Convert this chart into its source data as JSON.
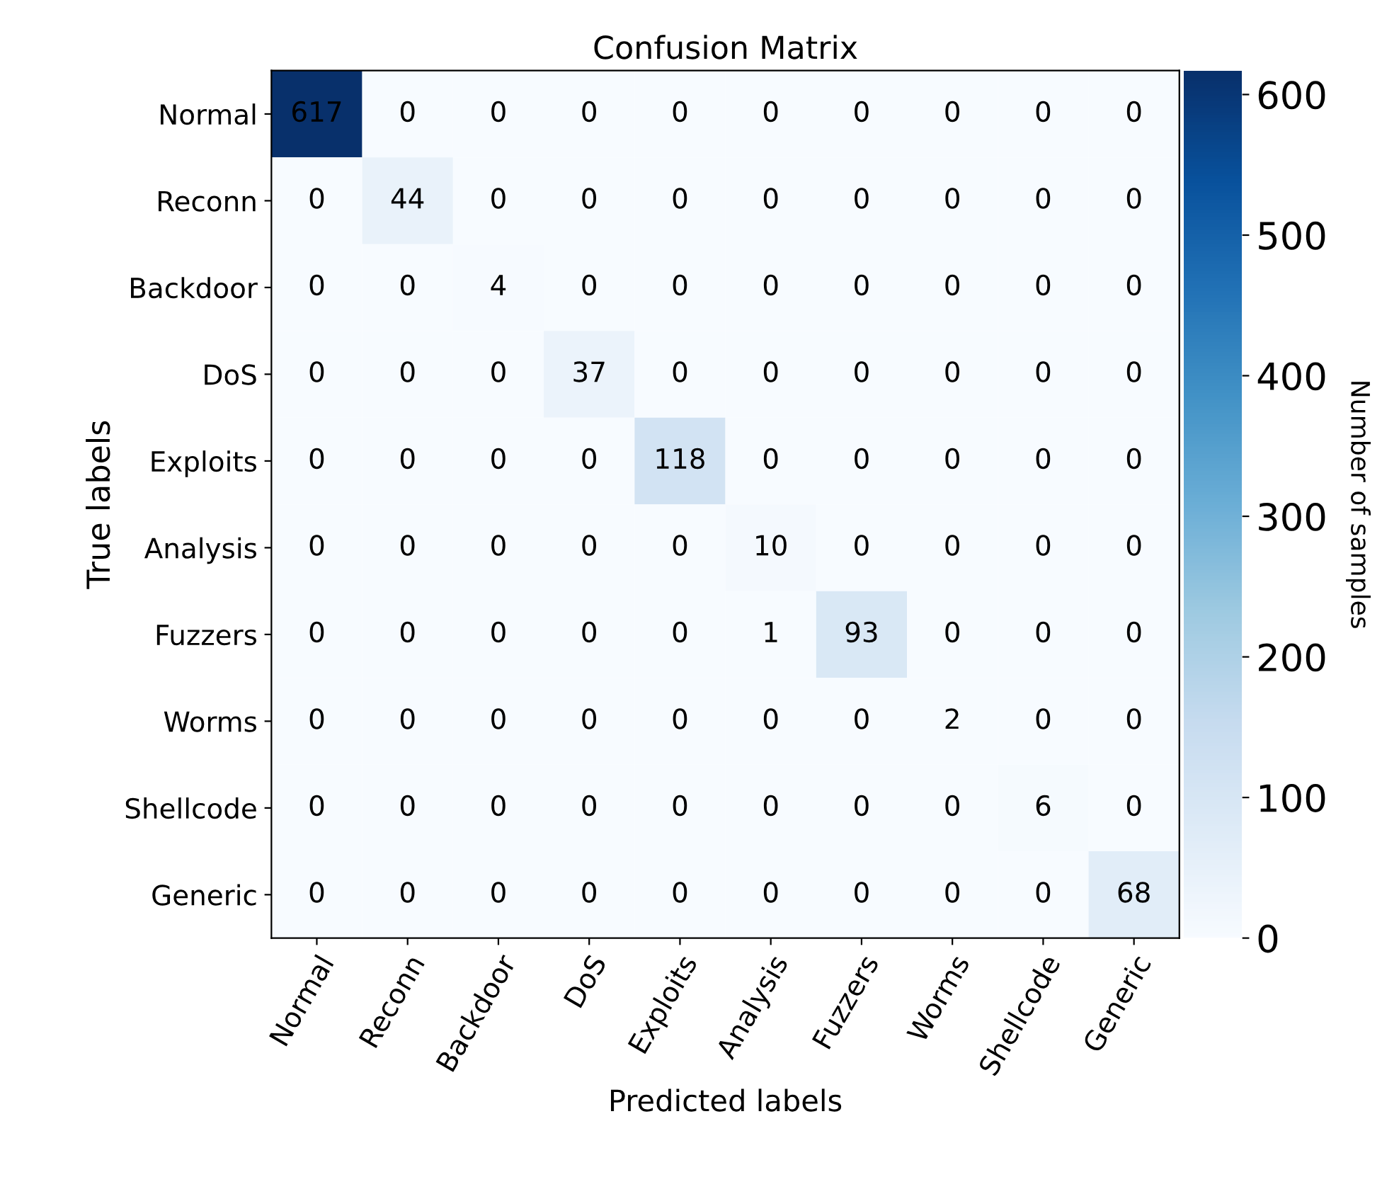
{
  "chart_data": {
    "type": "heatmap",
    "title": "Confusion Matrix",
    "xlabel": "Predicted labels",
    "ylabel": "True labels",
    "clabel": "Number of samples",
    "categories": [
      "Normal",
      "Reconn",
      "Backdoor",
      "DoS",
      "Exploits",
      "Analysis",
      "Fuzzers",
      "Worms",
      "Shellcode",
      "Generic"
    ],
    "y_categories": [
      "Normal",
      "Reconn",
      "Backdoor",
      "DoS",
      "Exploits",
      "Analysis",
      "Fuzzers",
      "Worms",
      "Shellcode",
      "Generic"
    ],
    "cells": [
      [
        617,
        0,
        0,
        0,
        0,
        0,
        0,
        0,
        0,
        0
      ],
      [
        0,
        44,
        0,
        0,
        0,
        0,
        0,
        0,
        0,
        0
      ],
      [
        0,
        0,
        4,
        0,
        0,
        0,
        0,
        0,
        0,
        0
      ],
      [
        0,
        0,
        0,
        37,
        0,
        0,
        0,
        0,
        0,
        0
      ],
      [
        0,
        0,
        0,
        0,
        118,
        0,
        0,
        0,
        0,
        0
      ],
      [
        0,
        0,
        0,
        0,
        0,
        10,
        0,
        0,
        0,
        0
      ],
      [
        0,
        0,
        0,
        0,
        0,
        1,
        93,
        0,
        0,
        0
      ],
      [
        0,
        0,
        0,
        0,
        0,
        0,
        0,
        2,
        0,
        0
      ],
      [
        0,
        0,
        0,
        0,
        0,
        0,
        0,
        0,
        6,
        0
      ],
      [
        0,
        0,
        0,
        0,
        0,
        0,
        0,
        0,
        0,
        68
      ]
    ],
    "clim": [
      0,
      617
    ],
    "cticks": [
      0,
      100,
      200,
      300,
      400,
      500,
      600
    ],
    "data_labels": true
  }
}
